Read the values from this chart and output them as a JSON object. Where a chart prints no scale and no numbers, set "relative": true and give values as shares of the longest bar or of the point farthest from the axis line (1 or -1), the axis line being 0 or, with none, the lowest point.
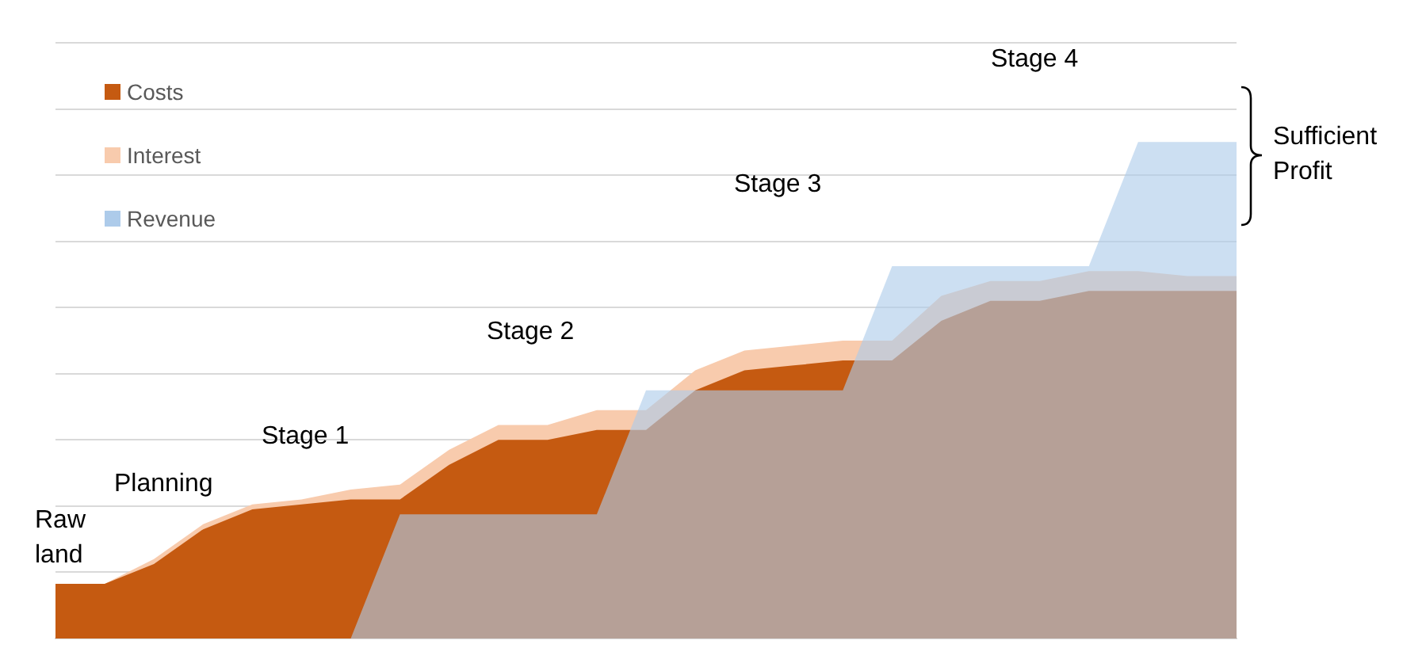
{
  "chart_data": {
    "type": "area",
    "relative": true,
    "grid": "y",
    "legend": "top left",
    "categories": [
      null,
      null,
      null,
      null,
      null,
      null,
      null,
      null,
      null,
      null,
      null,
      null,
      null,
      null,
      null,
      null,
      null,
      null,
      null,
      null,
      null,
      null,
      null,
      null,
      null
    ],
    "series": [
      {
        "name": "Costs",
        "color": "#c55a11",
        "values": [
          0.11,
          0.11,
          0.15,
          0.22,
          0.26,
          0.27,
          0.28,
          0.28,
          0.35,
          0.4,
          0.4,
          0.42,
          0.42,
          0.5,
          0.54,
          0.55,
          0.56,
          0.56,
          0.64,
          0.68,
          0.68,
          0.7,
          0.7,
          0.7,
          0.7
        ]
      },
      {
        "name": "Interest",
        "color": "#f8cbad",
        "values": [
          0.11,
          0.11,
          0.16,
          0.23,
          0.27,
          0.28,
          0.3,
          0.31,
          0.38,
          0.43,
          0.43,
          0.46,
          0.46,
          0.54,
          0.58,
          0.59,
          0.6,
          0.6,
          0.69,
          0.72,
          0.72,
          0.74,
          0.74,
          0.73,
          0.73
        ]
      },
      {
        "name": "Revenue",
        "color": "#adcbea",
        "values": [
          0,
          0,
          0,
          0,
          0,
          0,
          0,
          0.25,
          0.25,
          0.25,
          0.25,
          0.25,
          0.5,
          0.5,
          0.5,
          0.5,
          0.5,
          0.75,
          0.75,
          0.75,
          0.75,
          0.75,
          1,
          1,
          1
        ]
      }
    ],
    "annotations": [
      "Raw land",
      "Planning",
      "Stage 1",
      "Stage 2",
      "Stage 3",
      "Stage 4",
      "Sufficient Profit"
    ]
  }
}
